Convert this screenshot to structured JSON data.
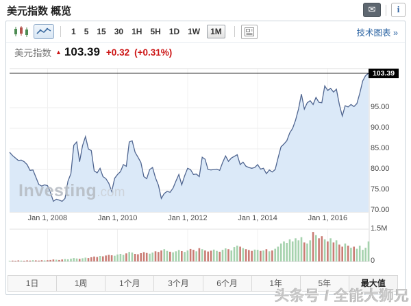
{
  "page": {
    "title": "美元指数 概览"
  },
  "header": {
    "email_icon": "✉",
    "info_icon": "i"
  },
  "toolbar": {
    "chart_type_icons": [
      "candlestick-chart",
      "line-chart"
    ],
    "selected_chart_type": "line-chart",
    "intervals": [
      "1",
      "5",
      "15",
      "30",
      "1H",
      "5H",
      "1D",
      "1W",
      "1M"
    ],
    "selected_interval": "1M",
    "link": "技术图表",
    "link_arrow": "»"
  },
  "quote": {
    "name": "美元指数",
    "direction_arrow": "▲",
    "last": "103.39",
    "change": "+0.32",
    "change_pct": "(+0.31%)"
  },
  "chart_data": {
    "type": "area",
    "title": "美元指数 monthly price with volume",
    "x_tick_labels": [
      "Jan 1, 2008",
      "Jan 1, 2010",
      "Jan 1, 2012",
      "Jan 1, 2014",
      "Jan 1, 2016"
    ],
    "x_tick_indices": [
      13,
      37,
      61,
      85,
      109
    ],
    "y_tick_labels": [
      "95.00",
      "90.00",
      "85.00",
      "80.00",
      "75.00",
      "70.00"
    ],
    "ylim": [
      69.7,
      104.5
    ],
    "last_price": 103.39,
    "last_price_label": "103.39",
    "volume_axis_labels": [
      "1.5M",
      "0"
    ],
    "volume_max_label": "1.5M",
    "grid": true,
    "legend": "none",
    "prices": [
      84.2,
      83.4,
      82.8,
      82.2,
      82.3,
      81.9,
      81.2,
      79.8,
      79.9,
      78.2,
      76.4,
      76.0,
      76.3,
      76.1,
      74.5,
      72.3,
      72.8,
      72.6,
      72.3,
      73.0,
      77.2,
      79.0,
      85.9,
      86.7,
      81.9,
      85.8,
      88.0,
      85.0,
      84.6,
      79.7,
      79.2,
      80.3,
      78.3,
      77.8,
      76.7,
      74.7,
      77.9,
      78.8,
      79.5,
      81.2,
      80.8,
      86.7,
      87.0,
      84.2,
      83.0,
      81.7,
      78.3,
      77.8,
      80.0,
      80.5,
      78.0,
      76.2,
      73.0,
      74.2,
      74.7,
      74.5,
      75.5,
      77.2,
      78.8,
      76.3,
      78.5,
      80.3,
      80.0,
      78.8,
      78.9,
      78.3,
      83.0,
      82.5,
      80.0,
      79.9,
      80.0,
      80.1,
      79.8,
      81.7,
      83.3,
      82.0,
      82.8,
      83.2,
      83.6,
      81.2,
      81.8,
      80.8,
      80.5,
      80.3,
      80.5,
      81.2,
      80.1,
      80.3,
      79.0,
      79.9,
      79.4,
      80.0,
      82.8,
      85.5,
      86.2,
      87.0,
      88.9,
      90.0,
      92.0,
      94.7,
      98.3,
      94.7,
      96.2,
      96.7,
      95.8,
      97.5,
      96.3,
      96.2,
      100.3,
      99.2,
      99.7,
      98.8,
      99.5,
      95.8,
      93.0,
      95.5,
      95.2,
      95.8,
      95.3,
      96.0,
      98.5,
      101.5,
      102.8,
      103.39
    ],
    "volumes_millions": [
      0.03,
      0.04,
      0.03,
      0.05,
      0.04,
      0.03,
      0.05,
      0.04,
      0.06,
      0.05,
      0.04,
      0.06,
      0.05,
      0.06,
      0.07,
      0.09,
      0.08,
      0.07,
      0.09,
      0.11,
      0.1,
      0.13,
      0.16,
      0.14,
      0.12,
      0.15,
      0.18,
      0.16,
      0.2,
      0.23,
      0.21,
      0.26,
      0.24,
      0.28,
      0.31,
      0.29,
      0.27,
      0.33,
      0.36,
      0.31,
      0.38,
      0.45,
      0.42,
      0.36,
      0.34,
      0.39,
      0.44,
      0.4,
      0.37,
      0.42,
      0.48,
      0.45,
      0.52,
      0.58,
      0.5,
      0.46,
      0.43,
      0.48,
      0.54,
      0.49,
      0.45,
      0.52,
      0.59,
      0.55,
      0.48,
      0.63,
      0.58,
      0.52,
      0.47,
      0.51,
      0.56,
      0.5,
      0.46,
      0.55,
      0.62,
      0.58,
      0.52,
      0.68,
      0.75,
      0.7,
      0.63,
      0.58,
      0.54,
      0.5,
      0.56,
      0.55,
      0.5,
      0.52,
      0.58,
      0.48,
      0.52,
      0.6,
      0.7,
      0.85,
      0.95,
      0.88,
      1.05,
      0.95,
      1.1,
      1.0,
      1.15,
      0.9,
      0.85,
      1.0,
      1.4,
      1.25,
      1.1,
      1.2,
      1.05,
      0.95,
      1.1,
      0.9,
      1.0,
      0.8,
      0.7,
      0.85,
      0.75,
      0.65,
      0.7,
      0.6,
      0.75,
      0.55,
      0.65,
      0.95
    ],
    "colors": {
      "line": "#4f6590",
      "fill": "#dbe9f8",
      "volume_up": "#a5d2ad",
      "volume_down": "#c97c74",
      "last_price_line": "#000000",
      "tag_bg": "#000000",
      "tag_text": "#ffffff",
      "quote_red": "#cc1414",
      "link_blue": "#2e66a4"
    }
  },
  "footer": {
    "ranges": [
      "1日",
      "1周",
      "1个月",
      "3个月",
      "6个月",
      "1年",
      "5年",
      "最大值"
    ],
    "selected_range": "最大值"
  },
  "watermarks": {
    "investing_bold": "Investing",
    "investing_light": ".com",
    "overlay": "头条号 / 全能大狮兄"
  }
}
